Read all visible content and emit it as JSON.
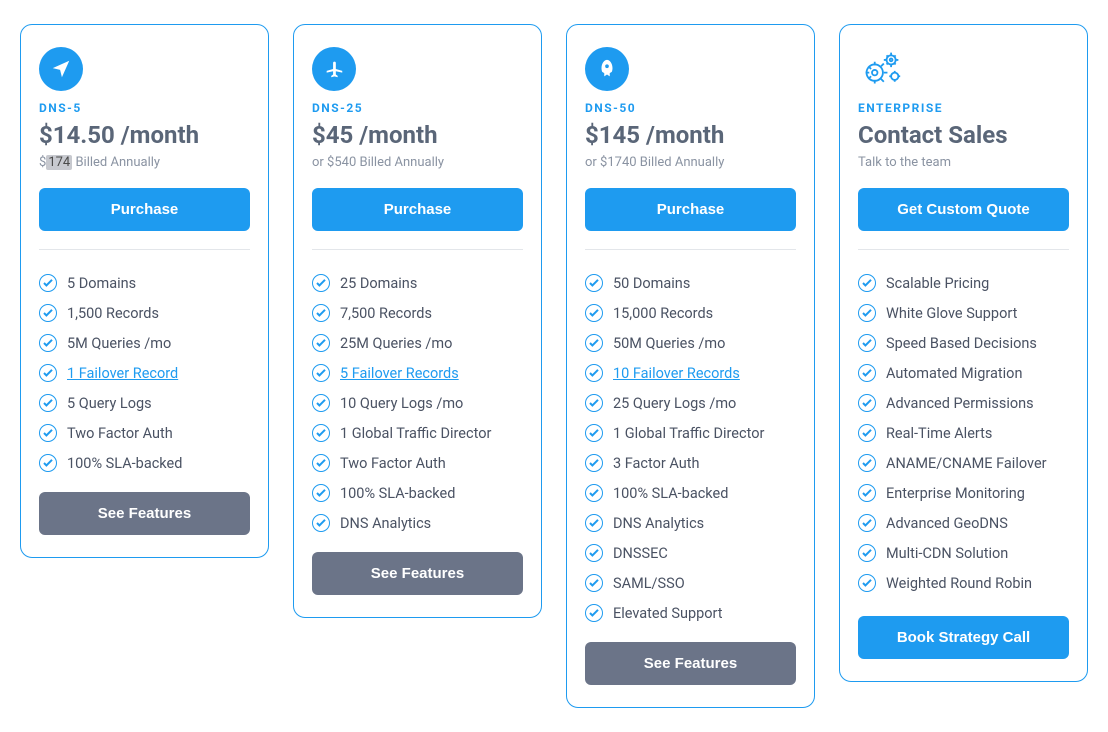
{
  "colors": {
    "accent": "#1e9bf0",
    "border": "#1e9bf0",
    "secondary_btn": "#6b7488",
    "text_muted": "#8a93a2",
    "text_heading": "#5a6678",
    "text_body": "#4a5263",
    "highlight_bg": "#c7c9cf",
    "divider": "#e3e6ea",
    "background": "#ffffff"
  },
  "plans": [
    {
      "icon": "send",
      "name": "DNS-5",
      "price": "$14.50 /month",
      "sub_prefix": "$",
      "sub_highlight": "174",
      "sub_suffix": " Billed Annually",
      "primary_btn": "Purchase",
      "features": [
        {
          "text": "5 Domains",
          "link": false
        },
        {
          "text": "1,500 Records",
          "link": false
        },
        {
          "text": "5M Queries /mo",
          "link": false
        },
        {
          "text": "1 Failover Record",
          "link": true
        },
        {
          "text": "5 Query Logs",
          "link": false
        },
        {
          "text": "Two Factor Auth",
          "link": false
        },
        {
          "text": "100% SLA-backed",
          "link": false
        }
      ],
      "secondary_btn": "See Features"
    },
    {
      "icon": "plane",
      "name": "DNS-25",
      "price": "$45 /month",
      "sub": "or $540 Billed Annually",
      "primary_btn": "Purchase",
      "features": [
        {
          "text": "25 Domains",
          "link": false
        },
        {
          "text": "7,500 Records",
          "link": false
        },
        {
          "text": "25M Queries /mo",
          "link": false
        },
        {
          "text": "5 Failover Records",
          "link": true
        },
        {
          "text": "10 Query Logs /mo",
          "link": false
        },
        {
          "text": "1 Global Traffic Director",
          "link": false
        },
        {
          "text": "Two Factor Auth",
          "link": false
        },
        {
          "text": "100% SLA-backed",
          "link": false
        },
        {
          "text": "DNS Analytics",
          "link": false
        }
      ],
      "secondary_btn": "See Features"
    },
    {
      "icon": "rocket",
      "name": "DNS-50",
      "price": "$145 /month",
      "sub": "or $1740 Billed Annually",
      "primary_btn": "Purchase",
      "features": [
        {
          "text": "50 Domains",
          "link": false
        },
        {
          "text": "15,000 Records",
          "link": false
        },
        {
          "text": "50M Queries /mo",
          "link": false
        },
        {
          "text": "10 Failover Records",
          "link": true
        },
        {
          "text": "25 Query Logs /mo",
          "link": false
        },
        {
          "text": "1 Global Traffic Director",
          "link": false
        },
        {
          "text": "3 Factor Auth",
          "link": false
        },
        {
          "text": "100% SLA-backed",
          "link": false
        },
        {
          "text": "DNS Analytics",
          "link": false
        },
        {
          "text": "DNSSEC",
          "link": false
        },
        {
          "text": "SAML/SSO",
          "link": false
        },
        {
          "text": "Elevated Support",
          "link": false
        }
      ],
      "secondary_btn": "See Features"
    },
    {
      "icon": "gears",
      "name": "ENTERPRISE",
      "price": "Contact Sales",
      "sub": "Talk to the team",
      "primary_btn": "Get Custom Quote",
      "features": [
        {
          "text": "Scalable Pricing",
          "link": false
        },
        {
          "text": "White Glove Support",
          "link": false
        },
        {
          "text": "Speed Based Decisions",
          "link": false
        },
        {
          "text": "Automated Migration",
          "link": false
        },
        {
          "text": "Advanced Permissions",
          "link": false
        },
        {
          "text": "Real-Time Alerts",
          "link": false
        },
        {
          "text": "ANAME/CNAME Failover",
          "link": false
        },
        {
          "text": "Enterprise Monitoring",
          "link": false
        },
        {
          "text": "Advanced GeoDNS",
          "link": false
        },
        {
          "text": "Multi-CDN Solution",
          "link": false
        },
        {
          "text": "Weighted Round Robin",
          "link": false
        }
      ],
      "secondary_btn": "Book Strategy Call",
      "secondary_btn_primary_style": true
    }
  ]
}
